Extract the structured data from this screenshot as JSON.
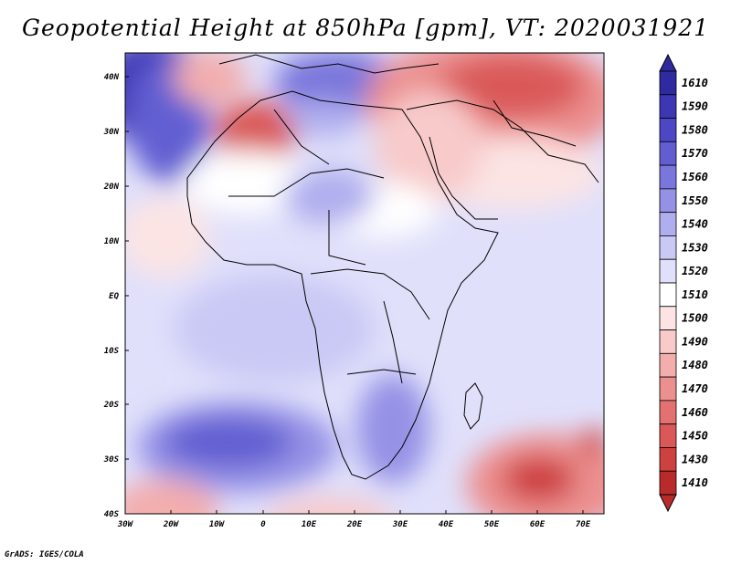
{
  "title": "Geopotential Height at 850hPa [gpm], VT: 2020031921",
  "footer": "GrADS: IGES/COLA",
  "map": {
    "lon_ticks": [
      "30W",
      "20W",
      "10W",
      "0",
      "10E",
      "20E",
      "30E",
      "40E",
      "50E",
      "60E",
      "70E"
    ],
    "lat_ticks": [
      "40N",
      "30N",
      "20N",
      "10N",
      "EQ",
      "10S",
      "20S",
      "30S",
      "40S"
    ]
  },
  "colorbar": {
    "levels": [
      {
        "label": "1610",
        "color": "#2f2aa0"
      },
      {
        "label": "1590",
        "color": "#3d37b4"
      },
      {
        "label": "1580",
        "color": "#4d47c6"
      },
      {
        "label": "1570",
        "color": "#625ed2"
      },
      {
        "label": "1560",
        "color": "#7a77dc"
      },
      {
        "label": "1550",
        "color": "#9592e6"
      },
      {
        "label": "1540",
        "color": "#b0aeee"
      },
      {
        "label": "1530",
        "color": "#cac9f5"
      },
      {
        "label": "1520",
        "color": "#e0e0fb"
      },
      {
        "label": "1510",
        "color": "#ffffff"
      },
      {
        "label": "1500",
        "color": "#fce4e4"
      },
      {
        "label": "1490",
        "color": "#f8caca"
      },
      {
        "label": "1480",
        "color": "#f3adad"
      },
      {
        "label": "1470",
        "color": "#ec8f8f"
      },
      {
        "label": "1460",
        "color": "#e47171"
      },
      {
        "label": "1450",
        "color": "#da5858"
      },
      {
        "label": "1430",
        "color": "#cd4141"
      },
      {
        "label": "1410",
        "color": "#b92b2b"
      }
    ]
  }
}
